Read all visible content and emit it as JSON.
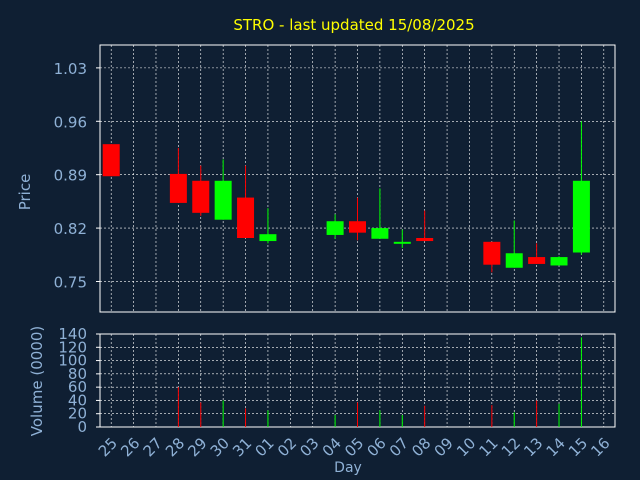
{
  "chart_data": {
    "type": "candlestick",
    "title": "STRO - last updated 15/08/2025",
    "xlabel": "Day",
    "ylabel": "Price",
    "volume_ylabel": "Volume (0000)",
    "price_ylim": [
      0.71,
      1.06
    ],
    "price_ticks": [
      "1.03",
      "0.96",
      "0.89",
      "0.82",
      "0.75"
    ],
    "volume_ylim": [
      0,
      140
    ],
    "volume_ticks": [
      "140",
      "120",
      "100",
      "80",
      "60",
      "40",
      "20",
      "0"
    ],
    "grid": true,
    "colors": {
      "background": "#0f1f33",
      "title": "#ffff00",
      "axis_text": "#8fb1d6",
      "grid": "#ffffff",
      "up": "#00ff00",
      "down": "#ff0000"
    },
    "x_labels": [
      "25",
      "26",
      "27",
      "28",
      "29",
      "30",
      "31",
      "01",
      "02",
      "03",
      "04",
      "05",
      "06",
      "07",
      "08",
      "09",
      "10",
      "11",
      "12",
      "13",
      "14",
      "15",
      "16"
    ],
    "candles": [
      {
        "day": "25",
        "open": 0.93,
        "high": 0.93,
        "low": 0.888,
        "close": 0.888,
        "volume": 0
      },
      {
        "day": "28",
        "open": 0.891,
        "high": 0.925,
        "low": 0.853,
        "close": 0.853,
        "volume": 60
      },
      {
        "day": "29",
        "open": 0.882,
        "high": 0.902,
        "low": 0.836,
        "close": 0.84,
        "volume": 37
      },
      {
        "day": "30",
        "open": 0.831,
        "high": 0.91,
        "low": 0.831,
        "close": 0.882,
        "volume": 40
      },
      {
        "day": "31",
        "open": 0.86,
        "high": 0.902,
        "low": 0.807,
        "close": 0.807,
        "volume": 28
      },
      {
        "day": "01",
        "open": 0.803,
        "high": 0.846,
        "low": 0.8,
        "close": 0.812,
        "volume": 25
      },
      {
        "day": "04",
        "open": 0.811,
        "high": 0.838,
        "low": 0.806,
        "close": 0.829,
        "volume": 18
      },
      {
        "day": "05",
        "open": 0.829,
        "high": 0.86,
        "low": 0.804,
        "close": 0.814,
        "volume": 37
      },
      {
        "day": "06",
        "open": 0.806,
        "high": 0.872,
        "low": 0.806,
        "close": 0.82,
        "volume": 25
      },
      {
        "day": "07",
        "open": 0.8,
        "high": 0.818,
        "low": 0.794,
        "close": 0.802,
        "volume": 18
      },
      {
        "day": "08",
        "open": 0.807,
        "high": 0.843,
        "low": 0.803,
        "close": 0.803,
        "volume": 32
      },
      {
        "day": "11",
        "open": 0.802,
        "high": 0.802,
        "low": 0.762,
        "close": 0.772,
        "volume": 33
      },
      {
        "day": "12",
        "open": 0.768,
        "high": 0.83,
        "low": 0.768,
        "close": 0.787,
        "volume": 22
      },
      {
        "day": "13",
        "open": 0.782,
        "high": 0.8,
        "low": 0.773,
        "close": 0.773,
        "volume": 40
      },
      {
        "day": "14",
        "open": 0.771,
        "high": 0.783,
        "low": 0.771,
        "close": 0.782,
        "volume": 35
      },
      {
        "day": "15",
        "open": 0.788,
        "high": 0.96,
        "low": 0.785,
        "close": 0.882,
        "volume": 135
      }
    ]
  }
}
